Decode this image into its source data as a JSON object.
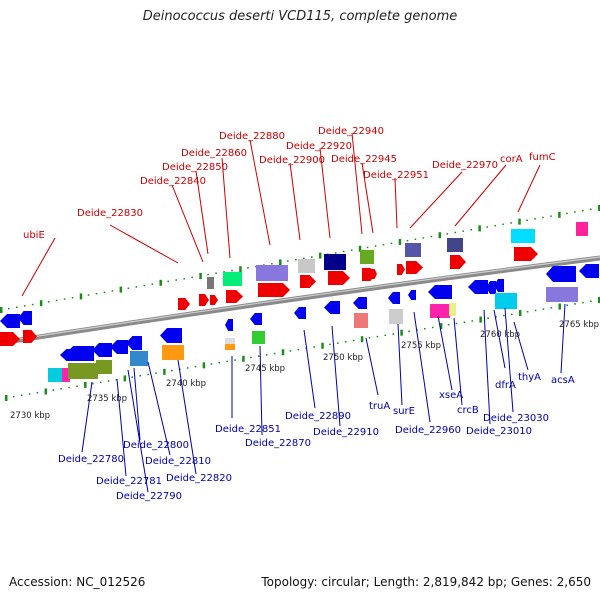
{
  "title": "Deinococcus deserti VCD115, complete genome",
  "footer": {
    "accession": "Accession: NC_012526",
    "summary": "Topology: circular; Length: 2,819,842 bp; Genes: 2,650"
  },
  "colors": {
    "top_label": "#cc0000",
    "bottom_label": "#0000aa",
    "forward_gene": "#ee0000",
    "reverse_gene": "#0000ee",
    "backbone": "#8a8a8a",
    "tick": "#1a8c1a"
  },
  "kbp_labels": [
    "2730 kbp",
    "2735 kbp",
    "2740 kbp",
    "2745 kbp",
    "2750 kbp",
    "2755 kbp",
    "2760 kbp",
    "2765 kbp"
  ],
  "top_labels": [
    "ubiE",
    "Deide_22830",
    "Deide_22840",
    "Deide_22850",
    "Deide_22860",
    "Deide_22880",
    "Deide_22900",
    "Deide_22920",
    "Deide_22940",
    "Deide_22945",
    "Deide_22951",
    "Deide_22970",
    "corA",
    "fumC"
  ],
  "bottom_labels": [
    "Deide_22780",
    "Deide_22781",
    "Deide_22790",
    "Deide_22800",
    "Deide_22810",
    "Deide_22820",
    "Deide_22851",
    "Deide_22870",
    "Deide_22890",
    "Deide_22910",
    "truA",
    "surE",
    "Deide_22960",
    "xseA",
    "crcB",
    "Deide_23010",
    "dfrA",
    "Deide_23030",
    "thyA",
    "acsA"
  ]
}
